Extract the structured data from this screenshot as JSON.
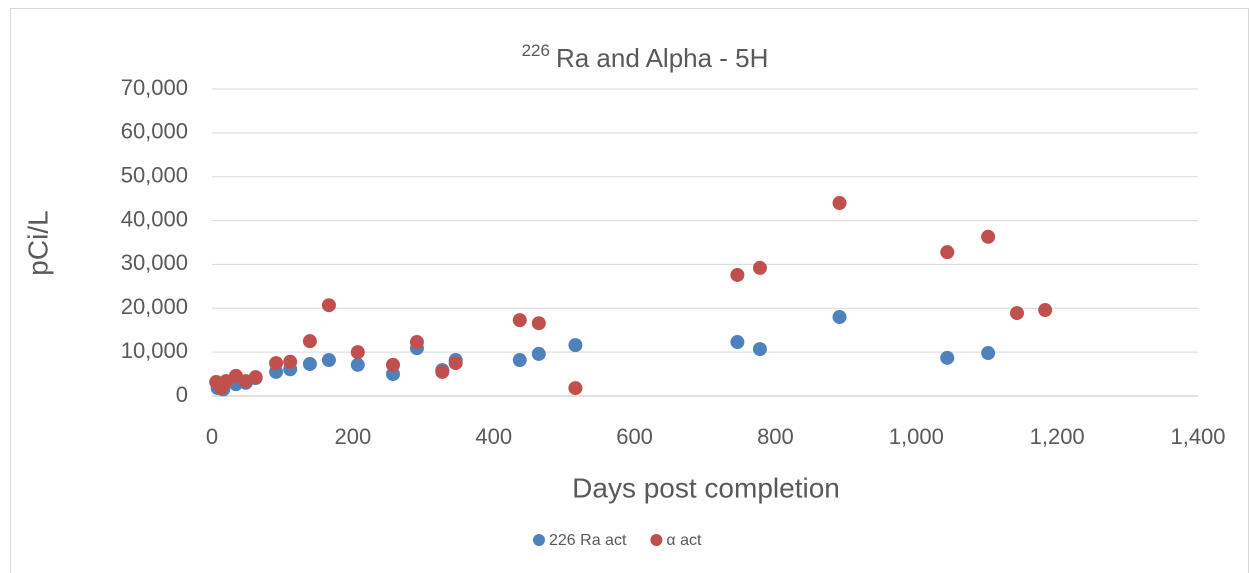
{
  "chart_data": {
    "type": "scatter",
    "title_superscript": "226",
    "title": "Ra and Alpha - 5H",
    "x_label": "Days post completion",
    "y_label": "pCi/L",
    "xlim": [
      0,
      1400
    ],
    "xticks": [
      0,
      200,
      400,
      600,
      800,
      {
        "value": 1000,
        "label": "1,000"
      },
      {
        "value": 1200,
        "label": "1,200"
      },
      {
        "value": 1400,
        "label": "1,400"
      }
    ],
    "ylim": [
      0,
      70000
    ],
    "yticks": [
      0,
      {
        "value": 10000,
        "label": "10,000"
      },
      {
        "value": 20000,
        "label": "20,000"
      },
      {
        "value": 30000,
        "label": "30,000"
      },
      {
        "value": 40000,
        "label": "40,000"
      },
      {
        "value": 50000,
        "label": "50,000"
      },
      {
        "value": 60000,
        "label": "60,000"
      },
      {
        "value": 70000,
        "label": "70,000"
      }
    ],
    "grid": true,
    "legend": "bottom",
    "series": [
      {
        "name": "226 Ra act",
        "color": "#4f81bd",
        "x": [
          8,
          16,
          34,
          48,
          62,
          91,
          111,
          139,
          166,
          207,
          257,
          291,
          327,
          346,
          437,
          464,
          516,
          746,
          778,
          891,
          1044,
          1102
        ],
        "values": [
          1800,
          1500,
          2700,
          3000,
          4100,
          5500,
          6100,
          7300,
          8200,
          7100,
          5000,
          10900,
          5900,
          8200,
          8200,
          9600,
          11600,
          12300,
          10700,
          18000,
          8700,
          9800
        ]
      },
      {
        "name": "α act",
        "color": "#c0504d",
        "x": [
          6,
          13,
          20,
          34,
          48,
          62,
          91,
          111,
          139,
          166,
          207,
          257,
          291,
          327,
          346,
          437,
          464,
          516,
          746,
          778,
          891,
          1044,
          1102,
          1143,
          1183
        ],
        "values": [
          3200,
          1800,
          3400,
          4600,
          3400,
          4300,
          7500,
          7800,
          12500,
          20700,
          10000,
          7100,
          12300,
          5500,
          7500,
          17300,
          16600,
          1800,
          27600,
          29200,
          44000,
          32800,
          36300,
          18900,
          19600
        ]
      }
    ]
  }
}
